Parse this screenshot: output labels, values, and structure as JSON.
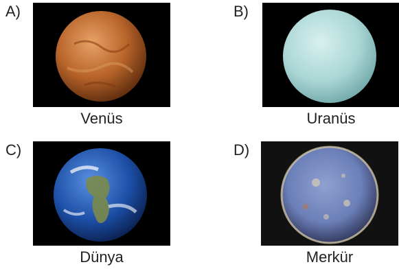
{
  "options": [
    {
      "letter": "A)",
      "caption": "Venüs",
      "planet_icon": "venus-icon",
      "colors": {
        "light": "#e8a266",
        "mid": "#b8642a",
        "dark": "#5a2a0c"
      }
    },
    {
      "letter": "B)",
      "caption": "Uranüs",
      "planet_icon": "uranus-icon",
      "colors": {
        "light": "#d8f0ee",
        "mid": "#a9d6d4",
        "dark": "#6fa7a8"
      }
    },
    {
      "letter": "C)",
      "caption": "Dünya",
      "planet_icon": "earth-icon",
      "colors": {
        "ocean": "#1c4fa6",
        "land": "#7b8a4a",
        "cloud": "#ffffff"
      }
    },
    {
      "letter": "D)",
      "caption": "Merkür",
      "planet_icon": "mercury-icon",
      "colors": {
        "light": "#e6d6b0",
        "mid": "#6b7fb8",
        "dark": "#1d1f3a"
      }
    }
  ],
  "background_color": "#000000"
}
